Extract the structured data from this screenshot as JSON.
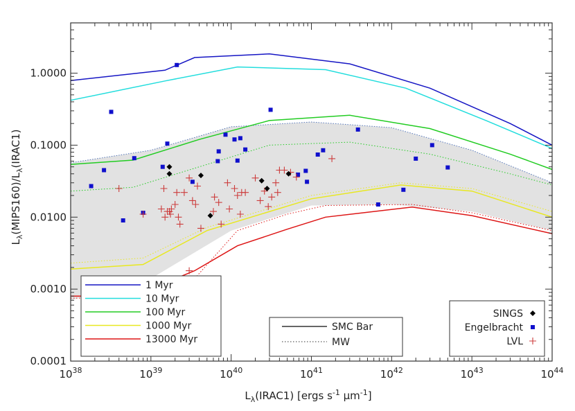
{
  "chart_data": {
    "type": "scatter",
    "x_scale": "log",
    "y_scale": "log",
    "xlim": [
      1e+38,
      1e+44
    ],
    "ylim": [
      0.0001,
      5.0
    ],
    "x_ticks": [
      {
        "value": 1e+38,
        "base": "10",
        "exp": "38"
      },
      {
        "value": 1e+39,
        "base": "10",
        "exp": "39"
      },
      {
        "value": 1e+40,
        "base": "10",
        "exp": "40"
      },
      {
        "value": 1e+41,
        "base": "10",
        "exp": "41"
      },
      {
        "value": 1e+42,
        "base": "10",
        "exp": "42"
      },
      {
        "value": 1e+43,
        "base": "10",
        "exp": "43"
      },
      {
        "value": 1e+44,
        "base": "10",
        "exp": "44"
      }
    ],
    "y_ticks": [
      {
        "value": 0.0001,
        "label": "0.0001"
      },
      {
        "value": 0.001,
        "label": "0.0010"
      },
      {
        "value": 0.01,
        "label": "0.0100"
      },
      {
        "value": 0.1,
        "label": "0.1000"
      },
      {
        "value": 1.0,
        "label": "1.0000"
      }
    ],
    "xlabel": {
      "pre": "L",
      "sub": "λ",
      "post": "(IRAC1) [ergs s",
      "sup": "-1",
      "mid": " μm",
      "sup2": "-1",
      "end": "]"
    },
    "ylabel": {
      "p1": "L",
      "s1": "λ",
      "p2": "(MIPS160)/L",
      "s2": "λ",
      "p3": "(IRAC1)"
    },
    "shaded_band": {
      "color": "#e2e2e2",
      "x": [
        1e+38,
        1e+39,
        1e+40,
        1e+41,
        1e+42,
        1e+43,
        1e+44
      ],
      "upper": [
        0.057,
        0.085,
        0.18,
        0.21,
        0.175,
        0.085,
        0.03
      ],
      "lower": [
        0.0007,
        0.0014,
        0.0065,
        0.0145,
        0.015,
        0.012,
        0.0065
      ]
    },
    "models": [
      {
        "name": "1 Myr",
        "color": "#1515c4",
        "solid": {
          "x": [
            1e+38,
            1.5e+39,
            3.5e+39,
            3e+40,
            3e+41,
            3e+42,
            3e+43,
            1e+44
          ],
          "y": [
            0.79,
            1.1,
            1.65,
            1.85,
            1.35,
            0.62,
            0.2,
            0.1
          ]
        },
        "dotted": null
      },
      {
        "name": "10 Myr",
        "color": "#22dddd",
        "solid": {
          "x": [
            1e+38,
            1.5e+39,
            1.2e+40,
            1.5e+41,
            1.5e+42,
            1.5e+43,
            1e+44
          ],
          "y": [
            0.42,
            0.78,
            1.22,
            1.12,
            0.62,
            0.22,
            0.09
          ]
        },
        "dotted": null
      },
      {
        "name": "100 Myr",
        "color": "#22cc22",
        "solid": {
          "x": [
            1e+38,
            6e+38,
            4e+39,
            3e+40,
            3e+41,
            3e+42,
            3e+43,
            1e+44
          ],
          "y": [
            0.054,
            0.062,
            0.12,
            0.22,
            0.26,
            0.17,
            0.075,
            0.046
          ]
        },
        "dotted": {
          "x": [
            1e+38,
            6e+38,
            4e+39,
            3e+40,
            3e+41,
            3e+42,
            3e+43,
            1e+44
          ],
          "y": [
            0.023,
            0.026,
            0.05,
            0.1,
            0.11,
            0.075,
            0.04,
            0.028
          ]
        }
      },
      {
        "name": "1000 Myr",
        "color": "#e8e820",
        "solid": {
          "x": [
            1e+38,
            8e+38,
            5e+39,
            1e+41,
            1.3e+42,
            1e+43,
            1e+44
          ],
          "y": [
            0.0019,
            0.0022,
            0.0065,
            0.018,
            0.028,
            0.023,
            0.01
          ]
        },
        "dotted": {
          "x": [
            1e+38,
            8e+38,
            5e+39,
            1e+41,
            1.3e+42,
            1e+43,
            1e+44
          ],
          "y": [
            0.0023,
            0.0027,
            0.0072,
            0.02,
            0.03,
            0.025,
            0.012
          ]
        }
      },
      {
        "name": "13000 Myr",
        "color": "#dd1515",
        "solid": {
          "x": [
            1e+38,
            6e+38,
            3.5e+39,
            1.2e+40,
            5e+40,
            1.5e+41,
            1.8e+42,
            1e+43,
            1e+44
          ],
          "y": [
            0.0008,
            0.0008,
            0.0018,
            0.004,
            0.0068,
            0.01,
            0.0138,
            0.0105,
            0.0059
          ]
        },
        "dotted": {
          "x": [
            1e+38,
            6e+38,
            3.5e+39,
            1.2e+40,
            5e+40,
            1.5e+41,
            1.8e+42,
            1e+43,
            1e+44
          ],
          "y": [
            0.00075,
            0.00075,
            0.0014,
            0.0065,
            0.011,
            0.0145,
            0.015,
            0.0115,
            0.0065
          ]
        }
      }
    ],
    "sings": {
      "name": "SINGS",
      "color": "#000000",
      "x": [
        1.7e+39,
        1.7e+39,
        4.2e+39,
        5.5e+39,
        2.4e+40,
        2.8e+40,
        5.2e+40
      ],
      "y": [
        0.05,
        0.04,
        0.038,
        0.0105,
        0.032,
        0.025,
        0.04
      ]
    },
    "engelbracht": {
      "name": "Engelbracht",
      "color": "#1010cc",
      "x": [
        1.8e+38,
        2.6e+38,
        3.2e+38,
        4.5e+38,
        6.2e+38,
        8e+38,
        1.4e+39,
        1.6e+39,
        2.1e+39,
        3.3e+39,
        6.8e+39,
        7e+39,
        8.5e+39,
        1.1e+40,
        1.2e+40,
        1.3e+40,
        1.5e+40,
        3.1e+40,
        6.8e+40,
        8.5e+40,
        8.8e+40,
        1.2e+41,
        1.4e+41,
        3.8e+41,
        6.8e+41,
        1.4e+42,
        2e+42,
        3.2e+42,
        5e+42
      ],
      "y": [
        0.027,
        0.045,
        0.29,
        0.009,
        0.066,
        0.0115,
        0.05,
        0.105,
        1.3,
        0.031,
        0.06,
        0.082,
        0.14,
        0.12,
        0.061,
        0.125,
        0.087,
        0.31,
        0.039,
        0.044,
        0.031,
        0.074,
        0.085,
        0.165,
        0.015,
        0.024,
        0.065,
        0.1,
        0.049
      ]
    },
    "lvl": {
      "name": "LVL",
      "color": "#cc3b3b",
      "x": [
        4e+38,
        8e+38,
        1.35e+39,
        1.45e+39,
        1.5e+39,
        1.6e+39,
        1.7e+39,
        1.75e+39,
        1.8e+39,
        2e+39,
        2.2e+39,
        2.3e+39,
        3e+39,
        3.3e+39,
        3.6e+39,
        3.8e+39,
        4.2e+39,
        6e+39,
        6.2e+39,
        7e+39,
        7.5e+39,
        9e+39,
        9.5e+39,
        1.1e+40,
        1.2e+40,
        1.3e+40,
        1.35e+40,
        1.5e+40,
        2e+40,
        2.3e+40,
        2.6e+40,
        2.9e+40,
        3.2e+40,
        3.6e+40,
        3.8e+40,
        4e+40,
        4.6e+40,
        5.5e+40,
        6.5e+40,
        1.8e+41,
        2.1e+39,
        2.6e+39,
        3e+39
      ],
      "y": [
        0.025,
        0.011,
        0.013,
        0.025,
        0.01,
        0.012,
        0.012,
        0.011,
        0.013,
        0.015,
        0.01,
        0.008,
        0.0018,
        0.017,
        0.015,
        0.027,
        0.007,
        0.012,
        0.019,
        0.016,
        0.008,
        0.03,
        0.013,
        0.025,
        0.02,
        0.011,
        0.022,
        0.022,
        0.035,
        0.017,
        0.023,
        0.014,
        0.019,
        0.03,
        0.022,
        0.045,
        0.045,
        0.042,
        0.036,
        0.065,
        0.022,
        0.022,
        0.035
      ]
    },
    "legend_models": {
      "position": "bottom-left",
      "entries": [
        "1 Myr",
        "10 Myr",
        "100 Myr",
        "1000 Myr",
        "13000 Myr"
      ]
    },
    "legend_linestyles": {
      "position": "bottom-center",
      "entries": [
        {
          "label": "SMC Bar",
          "style": "solid"
        },
        {
          "label": "MW",
          "style": "dotted"
        }
      ]
    },
    "legend_samples": {
      "position": "bottom-right",
      "entries": [
        {
          "label": "SINGS",
          "marker": "diamond"
        },
        {
          "label": "Engelbracht",
          "marker": "square"
        },
        {
          "label": "LVL",
          "marker": "plus"
        }
      ]
    }
  }
}
